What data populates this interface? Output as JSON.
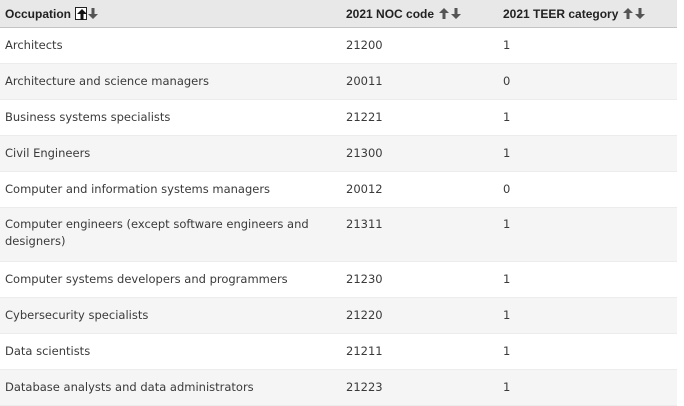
{
  "table": {
    "headers": {
      "occupation": "Occupation",
      "noc": "2021 NOC code",
      "teer": "2021 TEER category"
    },
    "icons": {
      "sort_up": "arrow-up-icon",
      "sort_down": "arrow-down-icon"
    },
    "rows": [
      {
        "occupation": "Architects",
        "noc": "21200",
        "teer": "1"
      },
      {
        "occupation": "Architecture and science managers",
        "noc": "20011",
        "teer": "0"
      },
      {
        "occupation": "Business systems specialists",
        "noc": "21221",
        "teer": "1"
      },
      {
        "occupation": "Civil Engineers",
        "noc": "21300",
        "teer": "1"
      },
      {
        "occupation": "Computer and information systems managers",
        "noc": "20012",
        "teer": "0"
      },
      {
        "occupation": "Computer engineers (except software engineers and designers)",
        "noc": "21311",
        "teer": "1"
      },
      {
        "occupation": "Computer systems developers and programmers",
        "noc": "21230",
        "teer": "1"
      },
      {
        "occupation": "Cybersecurity specialists",
        "noc": "21220",
        "teer": "1"
      },
      {
        "occupation": "Data scientists",
        "noc": "21211",
        "teer": "1"
      },
      {
        "occupation": "Database analysts and data administrators",
        "noc": "21223",
        "teer": "1"
      }
    ]
  }
}
